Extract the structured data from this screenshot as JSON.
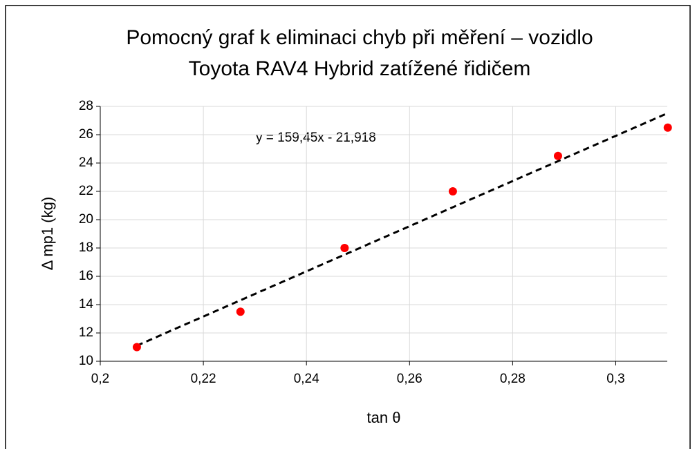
{
  "chart_data": {
    "type": "scatter",
    "title": [
      "Pomocný graf k eliminaci chyb při měření – vozidlo",
      "Toyota RAV4 Hybrid zatížené řidičem"
    ],
    "x_label": "tan θ",
    "y_label": "Δ mp1 (kg)",
    "series": [
      {
        "name": "Δ mp1",
        "color": "#ff0000",
        "x": [
          0.2071,
          0.2272,
          0.2474,
          0.2684,
          0.2888,
          0.3101
        ],
        "values": [
          11,
          13.5,
          18,
          22,
          24.5,
          26.5
        ]
      }
    ],
    "trendline": {
      "label": "y = 159,45x - 21,918",
      "slope": 159.45,
      "intercept": -21.918,
      "color": "#000000"
    },
    "xlim": [
      0.2,
      0.31
    ],
    "xticks": [
      {
        "value": 0.2,
        "label": "0,2"
      },
      {
        "value": 0.22,
        "label": "0,22"
      },
      {
        "value": 0.24,
        "label": "0,24"
      },
      {
        "value": 0.26,
        "label": "0,26"
      },
      {
        "value": 0.28,
        "label": "0,28"
      },
      {
        "value": 0.3,
        "label": "0,3"
      }
    ],
    "ylim": [
      10,
      28
    ],
    "yticks": [
      10,
      12,
      14,
      16,
      18,
      20,
      22,
      24,
      26,
      28
    ],
    "grid": true
  }
}
